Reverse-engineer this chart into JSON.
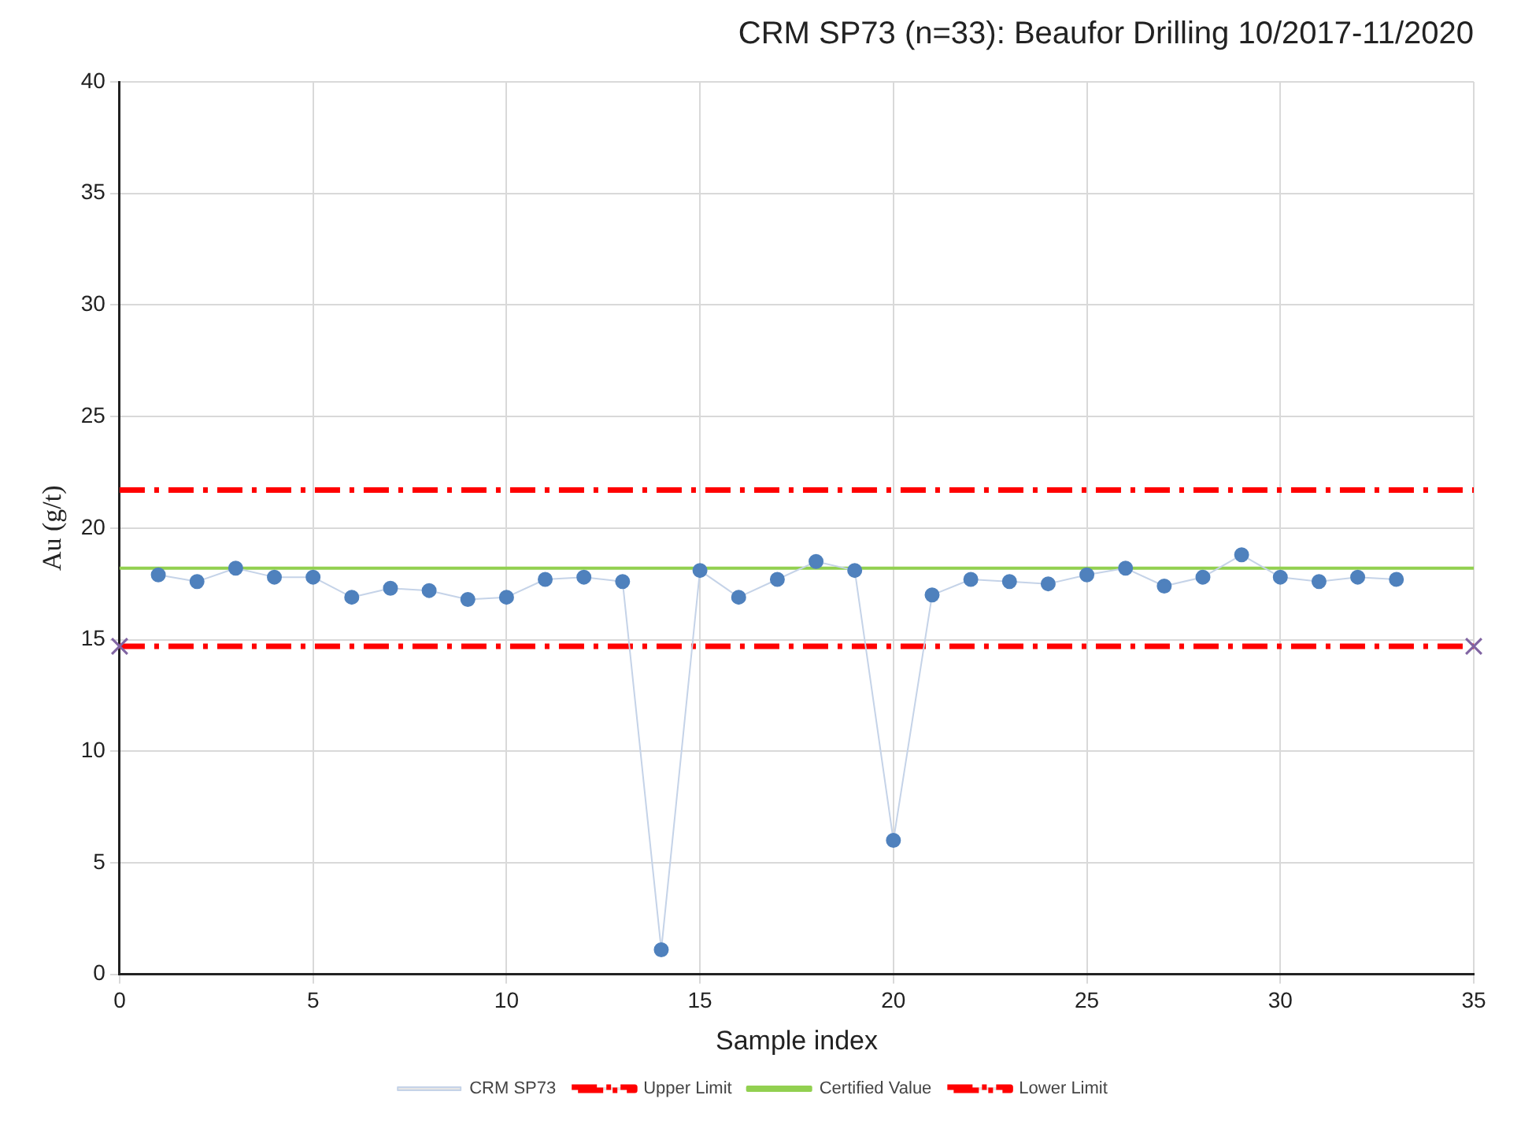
{
  "chart_data": {
    "type": "line",
    "title": "CRM SP73 (n=33): Beaufor Drilling 10/2017-11/2020",
    "xlabel": "Sample index",
    "ylabel": "Au (g/t)",
    "xlim": [
      0,
      35
    ],
    "xticks": [
      0,
      5,
      10,
      15,
      20,
      25,
      30,
      35
    ],
    "ylim": [
      0,
      40
    ],
    "yticks": [
      0,
      5,
      10,
      15,
      20,
      25,
      30,
      35,
      40
    ],
    "grid": true,
    "legend": "bottom",
    "series": [
      {
        "name": "CRM SP73",
        "color": "#4f81bd",
        "marker": "circle",
        "line_style": "solid",
        "x": [
          1,
          2,
          3,
          4,
          5,
          6,
          7,
          8,
          9,
          10,
          11,
          12,
          13,
          14,
          15,
          16,
          17,
          18,
          19,
          20,
          21,
          22,
          23,
          24,
          25,
          26,
          27,
          28,
          29,
          30,
          31,
          32,
          33
        ],
        "values": [
          17.9,
          17.6,
          18.2,
          17.8,
          17.8,
          16.9,
          17.3,
          17.2,
          16.8,
          16.9,
          17.7,
          17.8,
          17.6,
          1.1,
          18.1,
          16.9,
          17.7,
          18.5,
          18.1,
          6.0,
          17.0,
          17.7,
          17.6,
          17.5,
          17.9,
          18.2,
          17.4,
          17.8,
          18.8,
          17.8,
          17.6,
          17.8,
          17.7
        ]
      },
      {
        "name": "Upper Limit",
        "color": "#ff0000",
        "marker": "none",
        "line_style": "dashed",
        "x": [
          0,
          35
        ],
        "values": [
          21.7,
          21.7
        ]
      },
      {
        "name": "Certified Value",
        "color": "#92d050",
        "marker": "none",
        "line_style": "solid",
        "x": [
          0,
          35
        ],
        "values": [
          18.2,
          18.2
        ]
      },
      {
        "name": "Lower Limit",
        "color": "#ff0000",
        "marker": "cross",
        "line_style": "dashed",
        "x": [
          0,
          35
        ],
        "values": [
          14.7,
          14.7
        ]
      }
    ]
  }
}
